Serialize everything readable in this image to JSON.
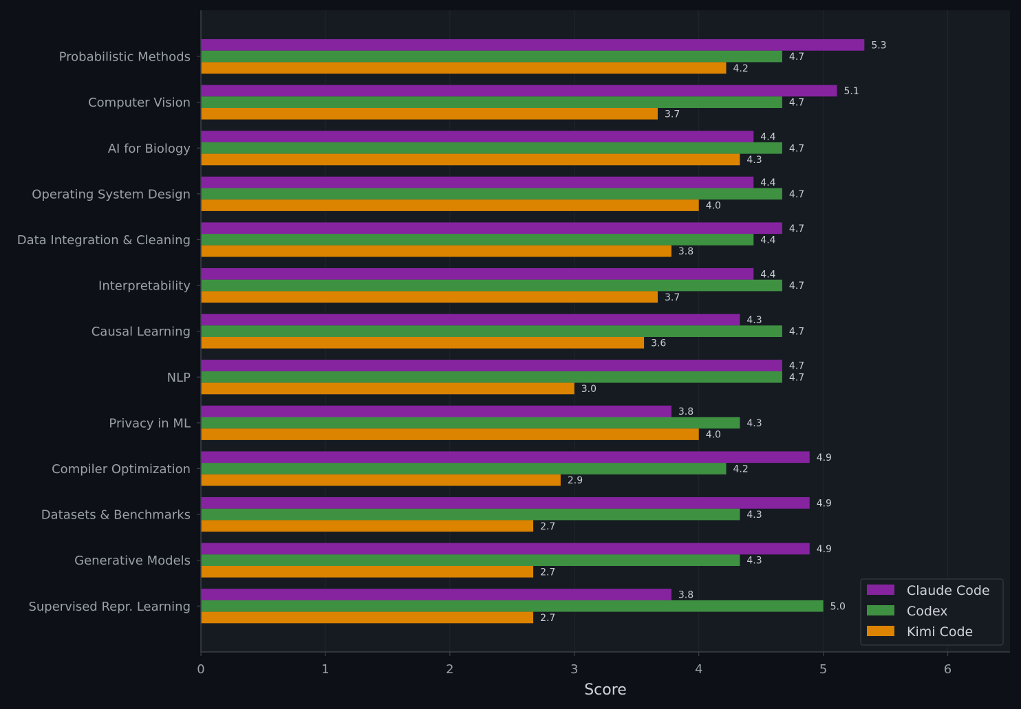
{
  "colors": {
    "page_background": "#0d1117",
    "plot_background": "#161b22",
    "grid": "#21262d",
    "axis": "#3b4048",
    "Claude Code": "#8624a0",
    "Codex": "#3f9142",
    "Kimi Code": "#dc8400"
  },
  "chart_data": {
    "type": "bar",
    "orientation": "horizontal",
    "title": "",
    "xlabel": "Score",
    "ylabel": "",
    "xlim": [
      0,
      6.5
    ],
    "xticks": [
      0,
      1,
      2,
      3,
      4,
      5,
      6
    ],
    "grid": true,
    "legend_position": "bottom-right",
    "categories": [
      "Probabilistic Methods",
      "Computer Vision",
      "AI for Biology",
      "Operating System Design",
      "Data Integration & Cleaning",
      "Interpretability",
      "Causal Learning",
      "NLP",
      "Privacy in ML",
      "Compiler Optimization",
      "Datasets & Benchmarks",
      "Generative Models",
      "Supervised Repr. Learning"
    ],
    "series": [
      {
        "name": "Claude Code",
        "values": [
          5.33,
          5.11,
          4.44,
          4.44,
          4.67,
          4.44,
          4.33,
          4.67,
          3.78,
          4.89,
          4.89,
          4.89,
          3.78
        ],
        "labels": [
          "5.3",
          "5.1",
          "4.4",
          "4.4",
          "4.7",
          "4.4",
          "4.3",
          "4.7",
          "3.8",
          "4.9",
          "4.9",
          "4.9",
          "3.8"
        ]
      },
      {
        "name": "Codex",
        "values": [
          4.67,
          4.67,
          4.67,
          4.67,
          4.44,
          4.67,
          4.67,
          4.67,
          4.33,
          4.22,
          4.33,
          4.33,
          5.0
        ],
        "labels": [
          "4.7",
          "4.7",
          "4.7",
          "4.7",
          "4.4",
          "4.7",
          "4.7",
          "4.7",
          "4.3",
          "4.2",
          "4.3",
          "4.3",
          "5.0"
        ]
      },
      {
        "name": "Kimi Code",
        "values": [
          4.22,
          3.67,
          4.33,
          4.0,
          3.78,
          3.67,
          3.56,
          3.0,
          4.0,
          2.89,
          2.67,
          2.67,
          2.67
        ],
        "labels": [
          "4.2",
          "3.7",
          "4.3",
          "4.0",
          "3.8",
          "3.7",
          "3.6",
          "3.0",
          "4.0",
          "2.9",
          "2.7",
          "2.7",
          "2.7"
        ]
      }
    ]
  }
}
